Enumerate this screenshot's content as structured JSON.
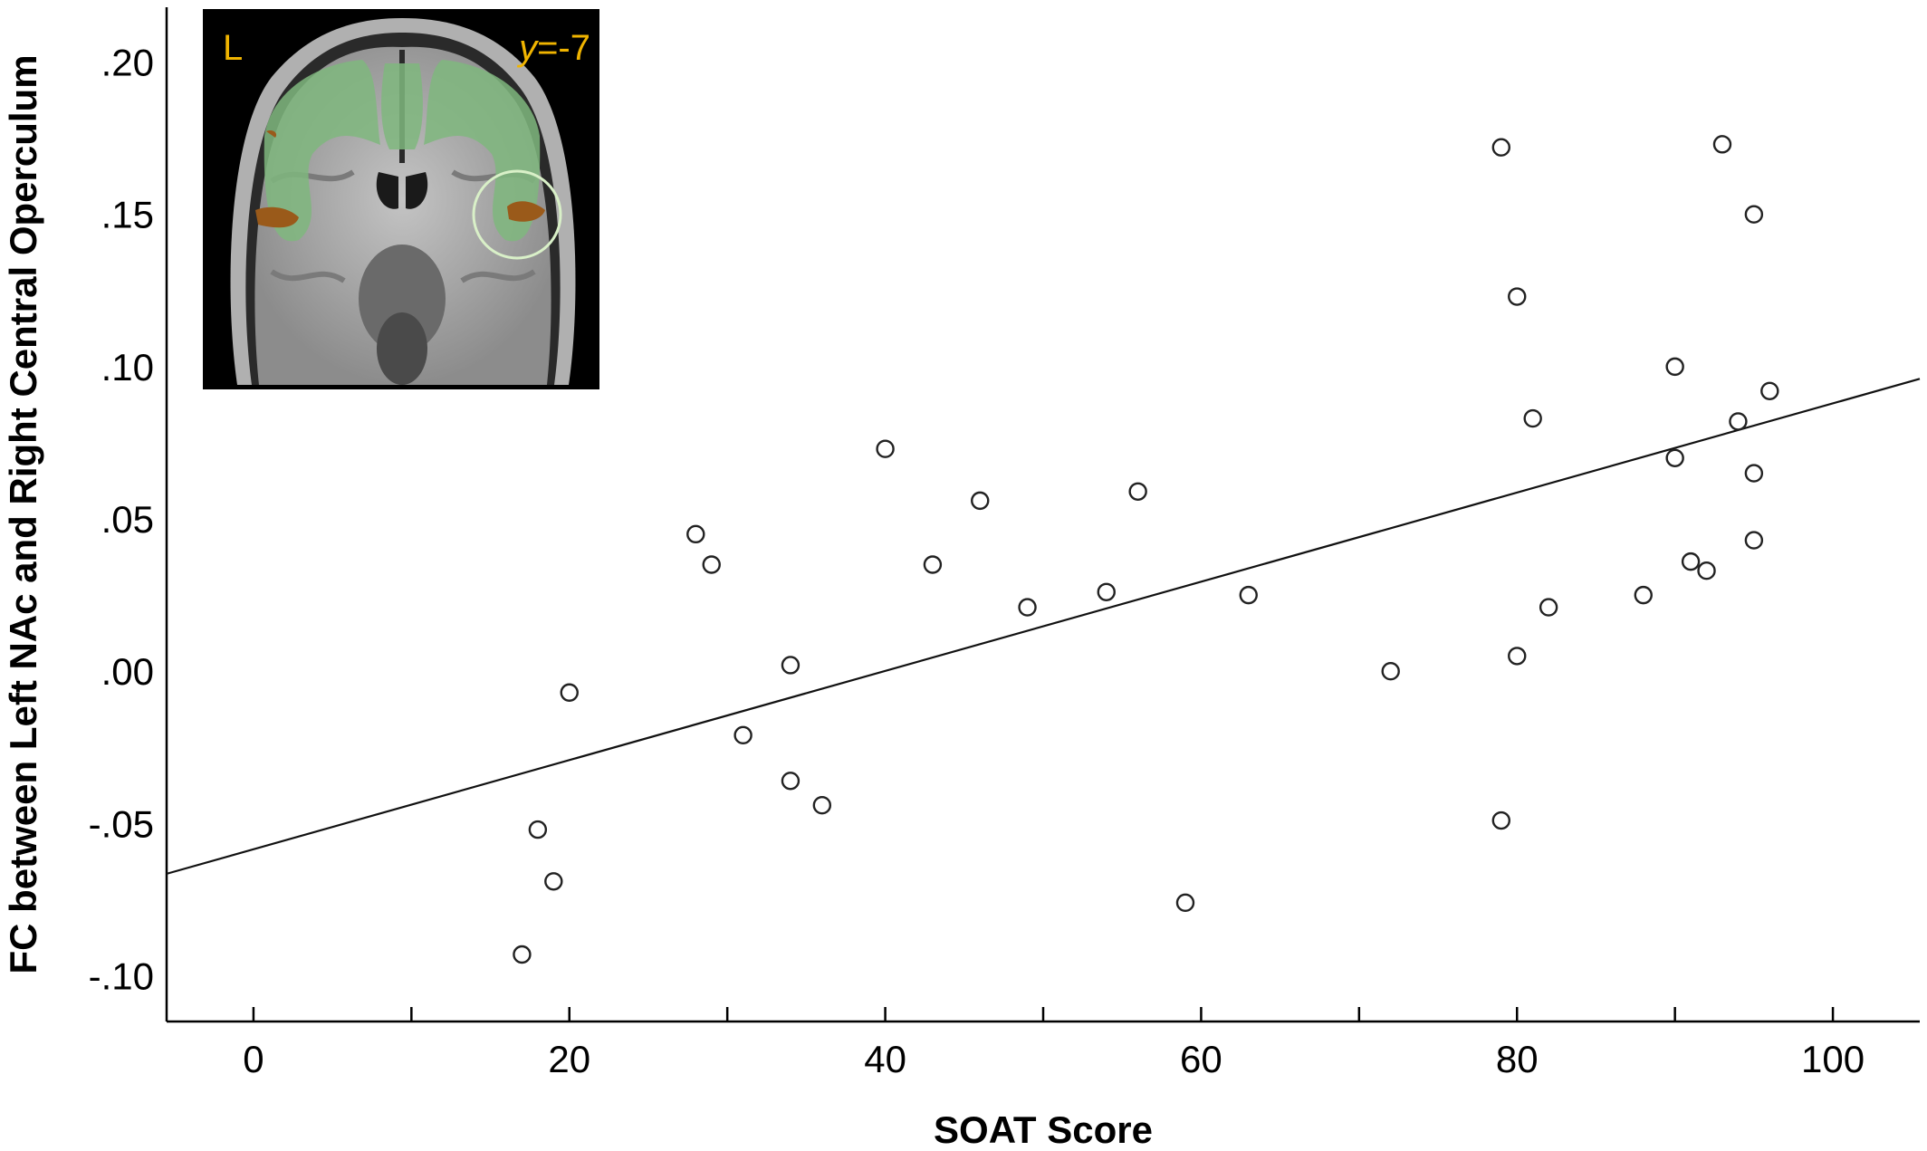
{
  "chart_data": {
    "type": "scatter",
    "xlabel": "SOAT Score",
    "ylabel": "FC between Left NAc and Right Central Operculum",
    "xlim": [
      -5.5,
      105.5
    ],
    "ylim": [
      -0.115,
      0.218
    ],
    "x_ticks": [
      0,
      20,
      40,
      60,
      80,
      100
    ],
    "x_tick_labels": [
      "0",
      "20",
      "40",
      "60",
      "80",
      "100"
    ],
    "x_minor_ticks": [
      10,
      30,
      50,
      70,
      90
    ],
    "y_ticks": [
      -0.1,
      -0.05,
      0.0,
      0.05,
      0.1,
      0.15,
      0.2
    ],
    "y_tick_labels": [
      "-.10",
      "-.05",
      ".00",
      ".05",
      ".10",
      ".15",
      ".20"
    ],
    "grid": false,
    "marker": "open-circle",
    "marker_color": "#222222",
    "points": [
      {
        "x": 17,
        "y": -0.093
      },
      {
        "x": 18,
        "y": -0.052
      },
      {
        "x": 19,
        "y": -0.069
      },
      {
        "x": 20,
        "y": -0.007
      },
      {
        "x": 28,
        "y": 0.045
      },
      {
        "x": 29,
        "y": 0.035
      },
      {
        "x": 31,
        "y": -0.021
      },
      {
        "x": 34,
        "y": 0.002
      },
      {
        "x": 34,
        "y": -0.036
      },
      {
        "x": 36,
        "y": -0.044
      },
      {
        "x": 40,
        "y": 0.073
      },
      {
        "x": 43,
        "y": 0.035
      },
      {
        "x": 46,
        "y": 0.056
      },
      {
        "x": 49,
        "y": 0.021
      },
      {
        "x": 54,
        "y": 0.026
      },
      {
        "x": 56,
        "y": 0.059
      },
      {
        "x": 59,
        "y": -0.076
      },
      {
        "x": 63,
        "y": 0.025
      },
      {
        "x": 72,
        "y": 0.0
      },
      {
        "x": 79,
        "y": 0.172
      },
      {
        "x": 79,
        "y": -0.049
      },
      {
        "x": 80,
        "y": 0.123
      },
      {
        "x": 80,
        "y": 0.005
      },
      {
        "x": 81,
        "y": 0.083
      },
      {
        "x": 82,
        "y": 0.021
      },
      {
        "x": 88,
        "y": 0.025
      },
      {
        "x": 90,
        "y": 0.1
      },
      {
        "x": 90,
        "y": 0.07
      },
      {
        "x": 91,
        "y": 0.036
      },
      {
        "x": 92,
        "y": 0.033
      },
      {
        "x": 93,
        "y": 0.173
      },
      {
        "x": 94,
        "y": 0.082
      },
      {
        "x": 95,
        "y": 0.15
      },
      {
        "x": 95,
        "y": 0.065
      },
      {
        "x": 95,
        "y": 0.043
      },
      {
        "x": 96,
        "y": 0.092
      }
    ],
    "fit_line": {
      "x": [
        -5.5,
        105.5
      ],
      "y": [
        -0.0665,
        0.096
      ]
    },
    "inset": {
      "side_label": "L",
      "slice_label_var": "y",
      "slice_label_value": "=-7",
      "label_color": "#f0b400",
      "overlay_color": "#7fb77e",
      "cluster_color": "#9a5a1a",
      "highlight_circle_color": "#d9f0c8"
    }
  }
}
